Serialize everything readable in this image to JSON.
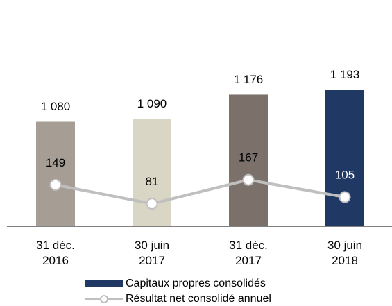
{
  "chart_data": {
    "type": "bar+line",
    "categories": [
      "31 déc. 2016",
      "30 juin 2017",
      "31 déc. 2017",
      "30 juin 2018"
    ],
    "series": [
      {
        "name": "Capitaux propres consolidés",
        "type": "bar",
        "color": "#1f3864",
        "colors": [
          "#a69e95",
          "#d9d6c6",
          "#7b716a",
          "#1f3864"
        ],
        "values": [
          1080,
          1090,
          1176,
          1193
        ],
        "value_labels": [
          "1 080",
          "1 090",
          "1 176",
          "1 193"
        ]
      },
      {
        "name": "Résultat net consolidé annuel",
        "type": "line",
        "axis": "y2",
        "color": "#bfbfbf",
        "values": [
          149,
          81,
          167,
          105
        ]
      }
    ],
    "ylim": [
      710,
      1300
    ],
    "y2lim": [
      0,
      600
    ],
    "legend": "bottom"
  }
}
